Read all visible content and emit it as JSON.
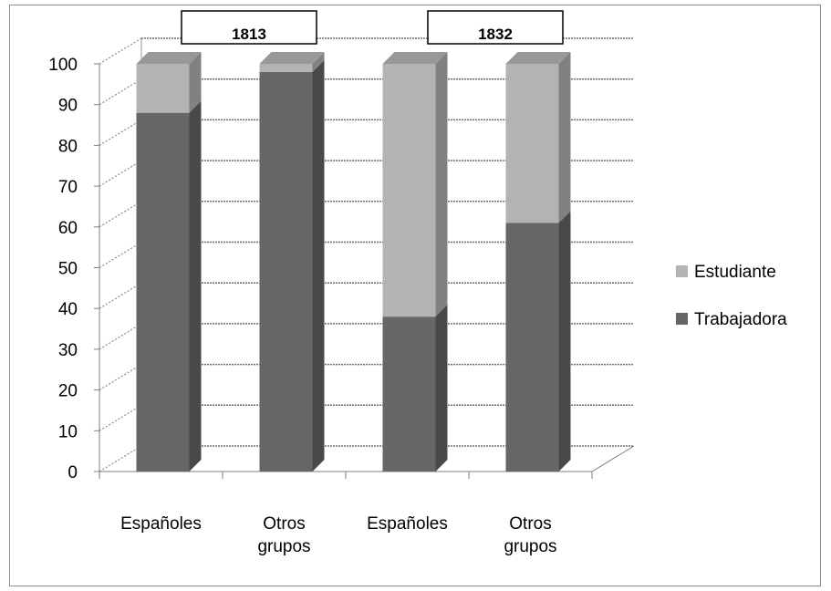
{
  "chart_data": {
    "type": "bar",
    "stacked": true,
    "three_d": true,
    "categories": [
      "Españoles",
      "Otros\ngrupos",
      "Españoles",
      "Otros\ngrupos"
    ],
    "groups": [
      "1813",
      "1832"
    ],
    "series": [
      {
        "name": "Trabajadora",
        "color": "#666666",
        "values": [
          88,
          98,
          38,
          61
        ]
      },
      {
        "name": "Estudiante",
        "color": "#b3b3b3",
        "values": [
          12,
          2,
          62,
          39
        ]
      }
    ],
    "ylim": [
      0,
      100
    ],
    "yticks": [
      0,
      10,
      20,
      30,
      40,
      50,
      60,
      70,
      80,
      90,
      100
    ],
    "grid": true,
    "legend_position": "right"
  }
}
